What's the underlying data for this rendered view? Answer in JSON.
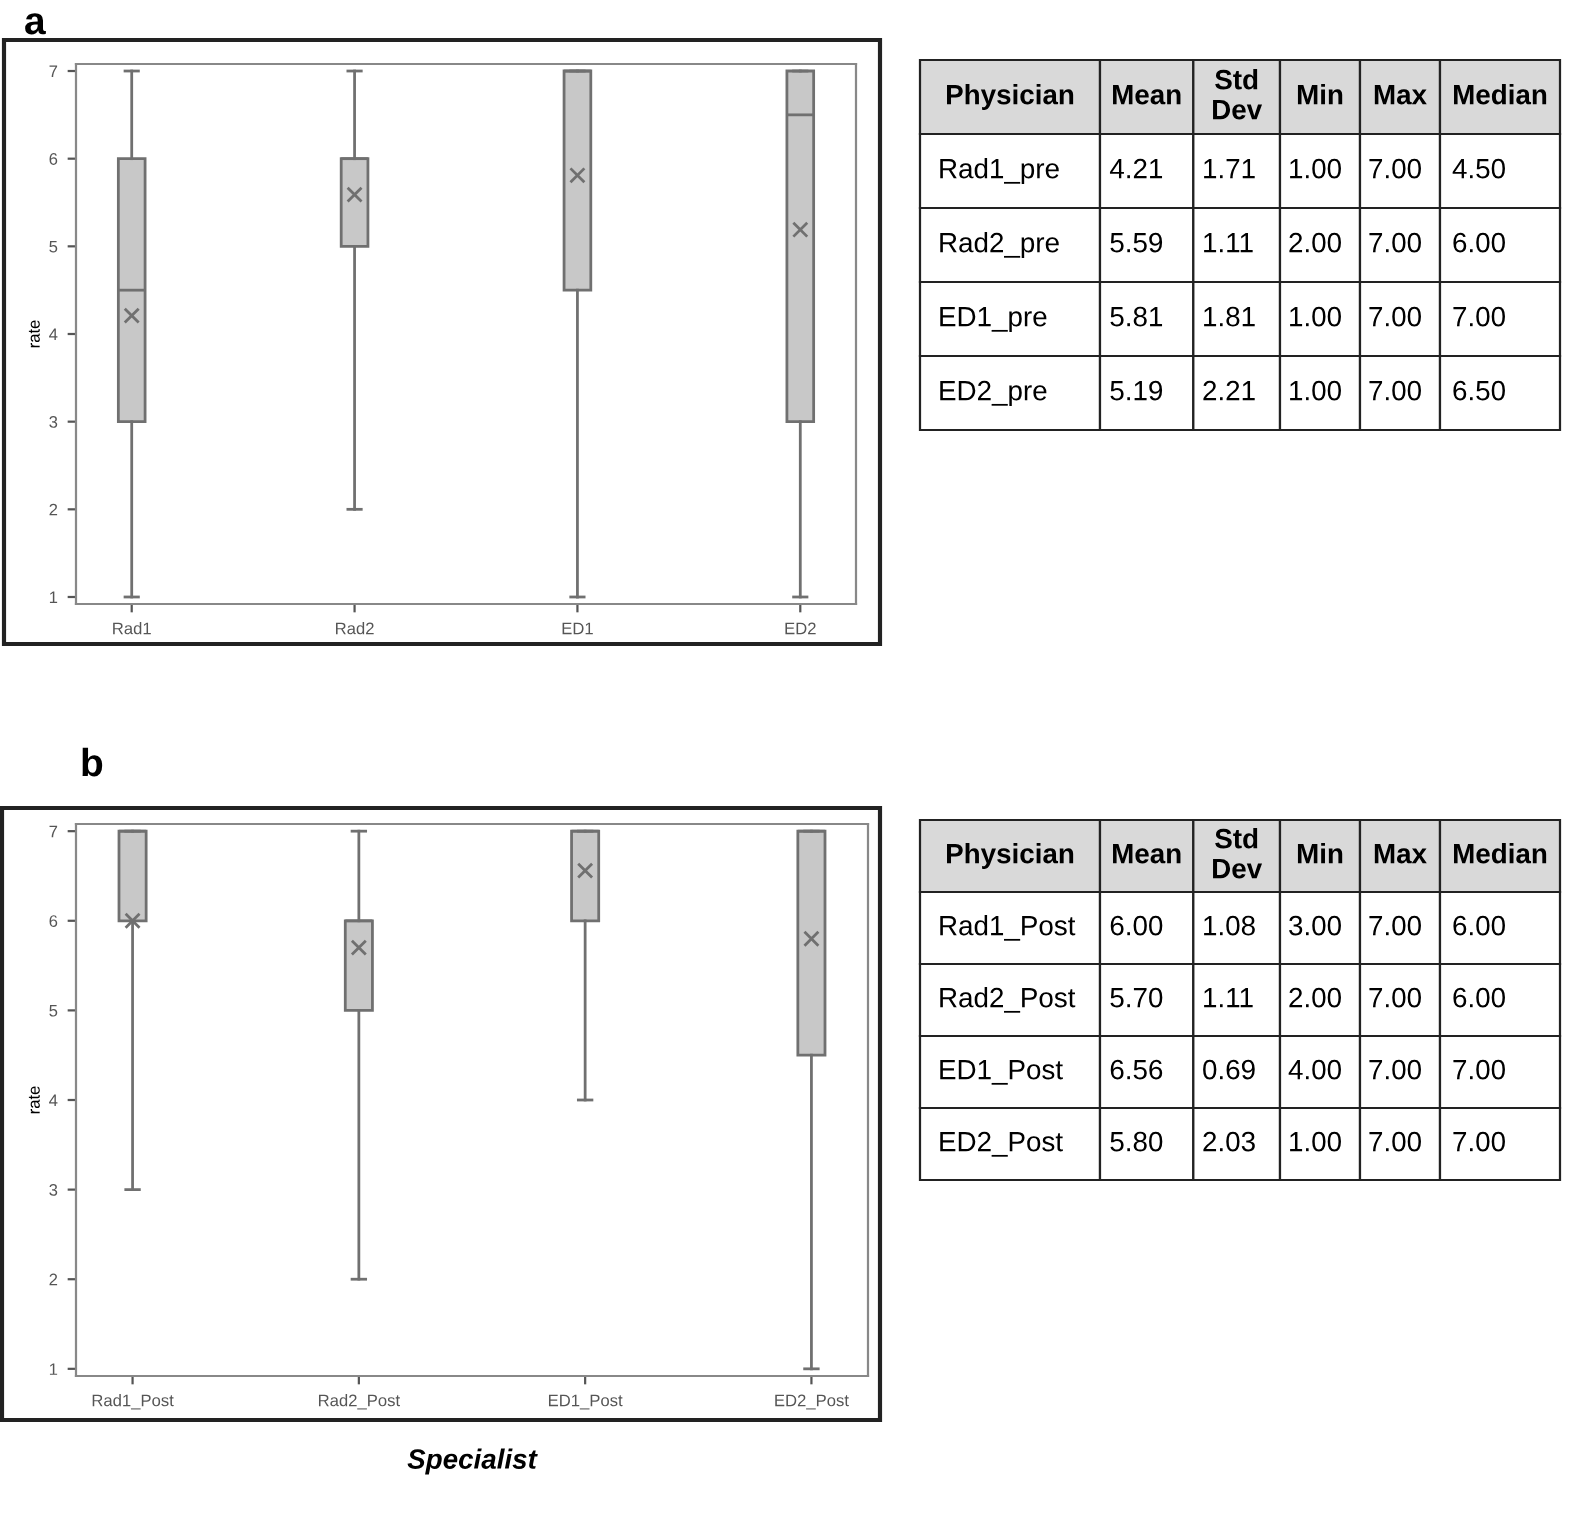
{
  "chart_data": [
    {
      "type": "box",
      "title": "a",
      "ylabel": "rate",
      "categories": [
        "Rad1",
        "Rad2",
        "ED1",
        "ED2"
      ],
      "color": "#c8c8c8",
      "marker": "cross",
      "ylim": [
        0.92,
        7.08
      ],
      "yticks": [
        1,
        2,
        3,
        4,
        5,
        6,
        7
      ],
      "grid": false,
      "boxes": [
        {
          "low": 1,
          "q1": 3,
          "median": 4.5,
          "q3": 6,
          "high": 7,
          "mean": 4.21
        },
        {
          "low": 2,
          "q1": 5,
          "median": 6,
          "q3": 6,
          "high": 7,
          "mean": 5.59
        },
        {
          "low": 1,
          "q1": 4.5,
          "median": 7,
          "q3": 7,
          "high": 7,
          "mean": 5.81
        },
        {
          "low": 1,
          "q1": 3,
          "median": 6.5,
          "q3": 7,
          "high": 7,
          "mean": 5.19
        }
      ]
    },
    {
      "type": "other",
      "categories": [
        "Physician",
        "Mean",
        "Std Dev",
        "Min",
        "Max",
        "Median"
      ],
      "y_categories": [
        "Rad1_pre",
        "Rad2_pre",
        "ED1_pre",
        "ED2_pre"
      ],
      "cell_labels": [
        [
          "4.21",
          "1.71",
          "1.00",
          "7.00",
          "4.50"
        ],
        [
          "5.59",
          "1.11",
          "2.00",
          "7.00",
          "6.00"
        ],
        [
          "5.81",
          "1.81",
          "1.00",
          "7.00",
          "7.00"
        ],
        [
          "5.19",
          "2.21",
          "1.00",
          "7.00",
          "6.50"
        ]
      ]
    },
    {
      "type": "box",
      "title": "b",
      "ylabel": "rate",
      "xlabel": "Specialist",
      "categories": [
        "Rad1_Post",
        "Rad2_Post",
        "ED1_Post",
        "ED2_Post"
      ],
      "color": "#c8c8c8",
      "marker": "cross",
      "ylim": [
        0.92,
        7.08
      ],
      "yticks": [
        1,
        2,
        3,
        4,
        5,
        6,
        7
      ],
      "grid": false,
      "boxes": [
        {
          "low": 3,
          "q1": 6,
          "median": 7,
          "q3": 7,
          "high": 7,
          "mean": 6.0
        },
        {
          "low": 2,
          "q1": 5,
          "median": 6,
          "q3": 6,
          "high": 7,
          "mean": 5.7
        },
        {
          "low": 4,
          "q1": 6,
          "median": 7,
          "q3": 7,
          "high": 7,
          "mean": 6.56
        },
        {
          "low": 1,
          "q1": 4.5,
          "median": 7,
          "q3": 7,
          "high": 7,
          "mean": 5.8
        }
      ]
    },
    {
      "type": "other",
      "categories": [
        "Physician",
        "Mean",
        "Std Dev",
        "Min",
        "Max",
        "Median"
      ],
      "y_categories": [
        "Rad1_Post",
        "Rad2_Post",
        "ED1_Post",
        "ED2_Post"
      ],
      "cell_labels": [
        [
          "6.00",
          "1.08",
          "3.00",
          "7.00",
          "6.00"
        ],
        [
          "5.70",
          "1.11",
          "2.00",
          "7.00",
          "6.00"
        ],
        [
          "6.56",
          "0.69",
          "4.00",
          "7.00",
          "7.00"
        ],
        [
          "5.80",
          "2.03",
          "1.00",
          "7.00",
          "7.00"
        ]
      ]
    }
  ]
}
